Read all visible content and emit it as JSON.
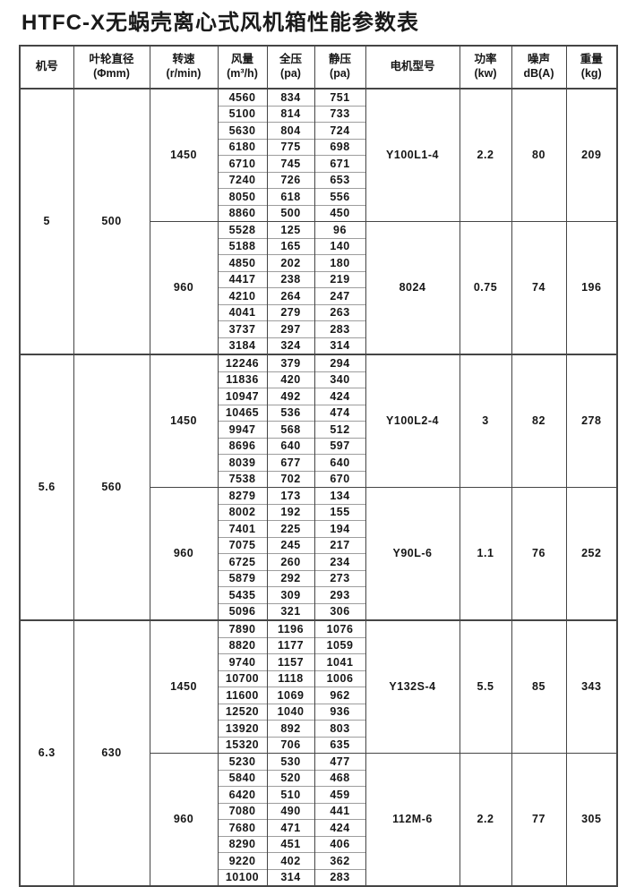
{
  "page": {
    "title": "HTFC-X无蜗壳离心式风机箱性能参数表"
  },
  "colors": {
    "border_dark": "#454545",
    "border_light": "#9d9d9d",
    "text": "#161616",
    "background": "#ffffff"
  },
  "table": {
    "headers": [
      {
        "line1": "机号",
        "line2": ""
      },
      {
        "line1": "叶轮直径",
        "line2": "(Φmm)"
      },
      {
        "line1": "转速",
        "line2": "(r/min)"
      },
      {
        "line1": "风量",
        "line2": "(m³/h)"
      },
      {
        "line1": "全压",
        "line2": "(pa)"
      },
      {
        "line1": "静压",
        "line2": "(pa)"
      },
      {
        "line1": "电机型号",
        "line2": ""
      },
      {
        "line1": "功率",
        "line2": "(kw)"
      },
      {
        "line1": "噪声",
        "line2": "dB(A)"
      },
      {
        "line1": "重量",
        "line2": "(kg)"
      }
    ],
    "sections": [
      {
        "machine_no": "5",
        "impeller_diameter": "500",
        "groups": [
          {
            "speed": "1450",
            "motor": "Y100L1-4",
            "power": "2.2",
            "noise": "80",
            "weight": "209",
            "rows": [
              [
                4560,
                834,
                751
              ],
              [
                5100,
                814,
                733
              ],
              [
                5630,
                804,
                724
              ],
              [
                6180,
                775,
                698
              ],
              [
                6710,
                745,
                671
              ],
              [
                7240,
                726,
                653
              ],
              [
                8050,
                618,
                556
              ],
              [
                8860,
                500,
                450
              ]
            ]
          },
          {
            "speed": "960",
            "motor": "8024",
            "power": "0.75",
            "noise": "74",
            "weight": "196",
            "rows": [
              [
                5528,
                125,
                96
              ],
              [
                5188,
                165,
                140
              ],
              [
                4850,
                202,
                180
              ],
              [
                4417,
                238,
                219
              ],
              [
                4210,
                264,
                247
              ],
              [
                4041,
                279,
                263
              ],
              [
                3737,
                297,
                283
              ],
              [
                3184,
                324,
                314
              ]
            ]
          }
        ]
      },
      {
        "machine_no": "5.6",
        "impeller_diameter": "560",
        "groups": [
          {
            "speed": "1450",
            "motor": "Y100L2-4",
            "power": "3",
            "noise": "82",
            "weight": "278",
            "rows": [
              [
                12246,
                379,
                294
              ],
              [
                11836,
                420,
                340
              ],
              [
                10947,
                492,
                424
              ],
              [
                10465,
                536,
                474
              ],
              [
                9947,
                568,
                512
              ],
              [
                8696,
                640,
                597
              ],
              [
                8039,
                677,
                640
              ],
              [
                7538,
                702,
                670
              ]
            ]
          },
          {
            "speed": "960",
            "motor": "Y90L-6",
            "power": "1.1",
            "noise": "76",
            "weight": "252",
            "rows": [
              [
                8279,
                173,
                134
              ],
              [
                8002,
                192,
                155
              ],
              [
                7401,
                225,
                194
              ],
              [
                7075,
                245,
                217
              ],
              [
                6725,
                260,
                234
              ],
              [
                5879,
                292,
                273
              ],
              [
                5435,
                309,
                293
              ],
              [
                5096,
                321,
                306
              ]
            ]
          }
        ]
      },
      {
        "machine_no": "6.3",
        "impeller_diameter": "630",
        "groups": [
          {
            "speed": "1450",
            "motor": "Y132S-4",
            "power": "5.5",
            "noise": "85",
            "weight": "343",
            "rows": [
              [
                7890,
                1196,
                1076
              ],
              [
                8820,
                1177,
                1059
              ],
              [
                9740,
                1157,
                1041
              ],
              [
                10700,
                1118,
                1006
              ],
              [
                11600,
                1069,
                962
              ],
              [
                12520,
                1040,
                936
              ],
              [
                13920,
                892,
                803
              ],
              [
                15320,
                706,
                635
              ]
            ]
          },
          {
            "speed": "960",
            "motor": "112M-6",
            "power": "2.2",
            "noise": "77",
            "weight": "305",
            "rows": [
              [
                5230,
                530,
                477
              ],
              [
                5840,
                520,
                468
              ],
              [
                6420,
                510,
                459
              ],
              [
                7080,
                490,
                441
              ],
              [
                7680,
                471,
                424
              ],
              [
                8290,
                451,
                406
              ],
              [
                9220,
                402,
                362
              ],
              [
                10100,
                314,
                283
              ]
            ]
          }
        ]
      }
    ]
  }
}
